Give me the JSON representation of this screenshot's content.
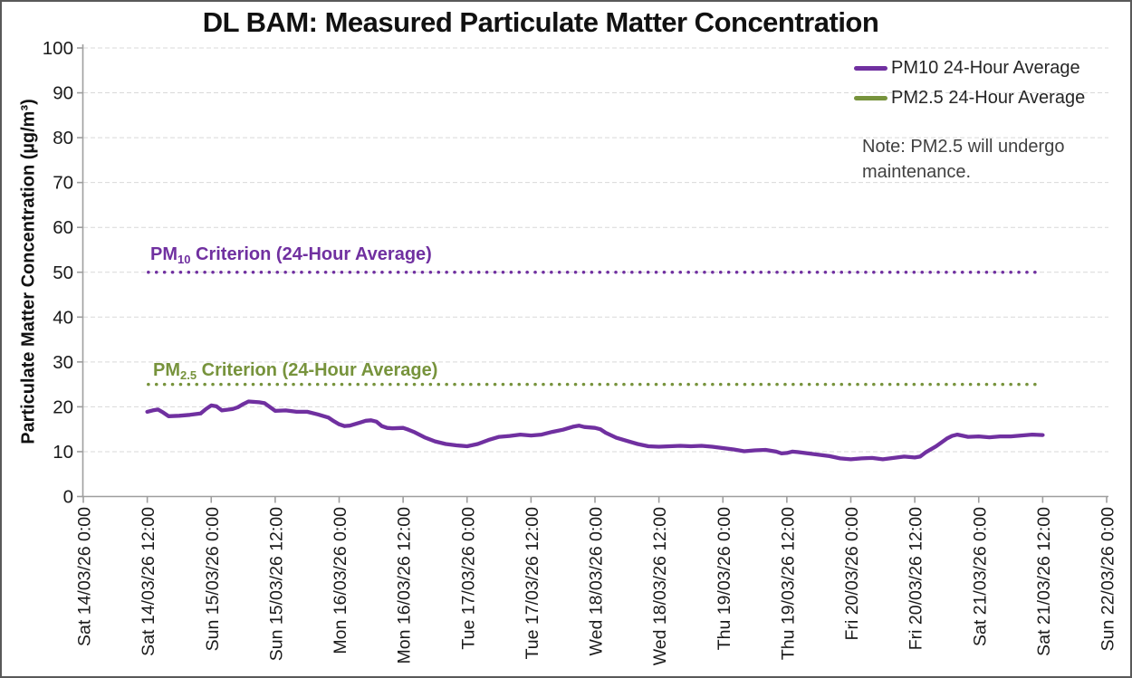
{
  "note": {
    "line1": "Note: PM2.5 will undergo",
    "line2": "maintenance."
  },
  "criterion_labels": {
    "pm10": {
      "prefix": "PM",
      "sub": "10",
      "suffix": " Criterion (24-Hour Average)"
    },
    "pm25": {
      "prefix": "PM",
      "sub": "2.5",
      "suffix": " Criterion (24-Hour Average)"
    }
  },
  "chart_data": {
    "type": "line",
    "title": "DL BAM: Measured Particulate Matter Concentration",
    "xlabel": "",
    "ylabel": "Particulate Matter Concentration (µg/m³)",
    "ylim": [
      0,
      100
    ],
    "y_ticks": [
      0,
      10,
      20,
      30,
      40,
      50,
      60,
      70,
      80,
      90,
      100
    ],
    "grid": "horizontal dashed",
    "legend_position": "top-right",
    "x_tick_interval_hours": 12,
    "x_tick_labels": [
      "Sat 14/03/26 0:00",
      "Sat 14/03/26 12:00",
      "Sun 15/03/26 0:00",
      "Sun 15/03/26 12:00",
      "Mon 16/03/26 0:00",
      "Mon 16/03/26 12:00",
      "Tue 17/03/26 0:00",
      "Tue 17/03/26 12:00",
      "Wed 18/03/26 0:00",
      "Wed 18/03/26 12:00",
      "Thu 19/03/26 0:00",
      "Thu 19/03/26 12:00",
      "Fri 20/03/26 0:00",
      "Fri 20/03/26 12:00",
      "Sat 21/03/26 0:00",
      "Sat 21/03/26 12:00",
      "Sun 22/03/26 0:00"
    ],
    "colors": {
      "grid": "#d9d9d9",
      "axis": "#9e9e9e",
      "tick_text": "#1a1a1a",
      "pm10_purple": "#7030A0",
      "pm25_green": "#77933C"
    },
    "series": [
      {
        "name": "PM10 24-Hour Average",
        "color": "#7030A0",
        "unit": "µg/m³",
        "points_hours_vs_value": [
          [
            12,
            18.9
          ],
          [
            13,
            19.2
          ],
          [
            14,
            19.4
          ],
          [
            15,
            18.7
          ],
          [
            16,
            17.9
          ],
          [
            18,
            18.0
          ],
          [
            20,
            18.2
          ],
          [
            22,
            18.5
          ],
          [
            23,
            19.5
          ],
          [
            24,
            20.3
          ],
          [
            25,
            20.1
          ],
          [
            26,
            19.2
          ],
          [
            28,
            19.5
          ],
          [
            29,
            19.9
          ],
          [
            30,
            20.6
          ],
          [
            31,
            21.2
          ],
          [
            33,
            21.0
          ],
          [
            34,
            20.8
          ],
          [
            36,
            19.1
          ],
          [
            38,
            19.2
          ],
          [
            40,
            18.9
          ],
          [
            42,
            18.9
          ],
          [
            44,
            18.3
          ],
          [
            46,
            17.6
          ],
          [
            47,
            16.8
          ],
          [
            48,
            16.1
          ],
          [
            49,
            15.7
          ],
          [
            50,
            15.8
          ],
          [
            52,
            16.5
          ],
          [
            53,
            16.9
          ],
          [
            54,
            17.0
          ],
          [
            55,
            16.7
          ],
          [
            56,
            15.7
          ],
          [
            57,
            15.3
          ],
          [
            58,
            15.2
          ],
          [
            60,
            15.3
          ],
          [
            61,
            14.9
          ],
          [
            62,
            14.4
          ],
          [
            63,
            13.8
          ],
          [
            64,
            13.2
          ],
          [
            66,
            12.3
          ],
          [
            68,
            11.7
          ],
          [
            70,
            11.4
          ],
          [
            72,
            11.2
          ],
          [
            74,
            11.7
          ],
          [
            76,
            12.6
          ],
          [
            78,
            13.3
          ],
          [
            80,
            13.5
          ],
          [
            82,
            13.8
          ],
          [
            84,
            13.6
          ],
          [
            86,
            13.8
          ],
          [
            88,
            14.4
          ],
          [
            90,
            14.9
          ],
          [
            92,
            15.6
          ],
          [
            93,
            15.8
          ],
          [
            94,
            15.5
          ],
          [
            96,
            15.3
          ],
          [
            97,
            15.0
          ],
          [
            98,
            14.2
          ],
          [
            100,
            13.1
          ],
          [
            102,
            12.4
          ],
          [
            104,
            11.7
          ],
          [
            106,
            11.2
          ],
          [
            108,
            11.1
          ],
          [
            110,
            11.2
          ],
          [
            112,
            11.3
          ],
          [
            114,
            11.2
          ],
          [
            116,
            11.3
          ],
          [
            118,
            11.1
          ],
          [
            120,
            10.8
          ],
          [
            122,
            10.5
          ],
          [
            124,
            10.1
          ],
          [
            126,
            10.3
          ],
          [
            128,
            10.4
          ],
          [
            130,
            10.0
          ],
          [
            131,
            9.6
          ],
          [
            132,
            9.7
          ],
          [
            133,
            10.0
          ],
          [
            134,
            9.9
          ],
          [
            136,
            9.6
          ],
          [
            138,
            9.3
          ],
          [
            140,
            9.0
          ],
          [
            142,
            8.5
          ],
          [
            144,
            8.3
          ],
          [
            146,
            8.5
          ],
          [
            148,
            8.6
          ],
          [
            150,
            8.3
          ],
          [
            152,
            8.6
          ],
          [
            154,
            8.9
          ],
          [
            156,
            8.7
          ],
          [
            157,
            8.9
          ],
          [
            158,
            9.8
          ],
          [
            160,
            11.2
          ],
          [
            162,
            12.9
          ],
          [
            163,
            13.5
          ],
          [
            164,
            13.8
          ],
          [
            166,
            13.3
          ],
          [
            168,
            13.4
          ],
          [
            170,
            13.2
          ],
          [
            172,
            13.4
          ],
          [
            174,
            13.4
          ],
          [
            176,
            13.6
          ],
          [
            178,
            13.8
          ],
          [
            180,
            13.7
          ]
        ]
      },
      {
        "name": "PM2.5 24-Hour Average",
        "color": "#77933C",
        "unit": "µg/m³",
        "points_hours_vs_value": []
      }
    ],
    "reference_lines": [
      {
        "label": "PM10 Criterion (24-Hour Average)",
        "value": 50,
        "color": "#7030A0",
        "style": "dotted",
        "span_hours": [
          12.2,
          179.8
        ]
      },
      {
        "label": "PM2.5 Criterion (24-Hour Average)",
        "value": 25,
        "color": "#77933C",
        "style": "dotted",
        "span_hours": [
          12.2,
          179.8
        ]
      }
    ],
    "annotations": [
      "Note: PM2.5 will undergo maintenance."
    ]
  }
}
